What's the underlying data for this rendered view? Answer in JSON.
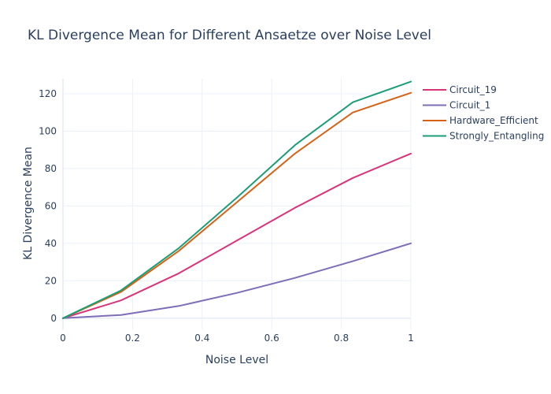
{
  "chart_data": {
    "type": "line",
    "title": "KL Divergence Mean for Different Ansaetze over Noise Level",
    "xlabel": "Noise Level",
    "ylabel": "KL Divergence Mean",
    "xlim": [
      0,
      1
    ],
    "ylim": [
      -6,
      128
    ],
    "xticks": [
      0,
      0.2,
      0.4,
      0.6,
      0.8,
      1
    ],
    "xtick_labels": [
      "0",
      "0.2",
      "0.4",
      "0.6",
      "0.8",
      "1"
    ],
    "yticks": [
      0,
      20,
      40,
      60,
      80,
      100,
      120
    ],
    "ytick_labels": [
      "0",
      "20",
      "40",
      "60",
      "80",
      "100",
      "120"
    ],
    "grid": true,
    "legend_position": "top-right",
    "x": [
      0,
      0.1667,
      0.3333,
      0.5,
      0.6667,
      0.8333,
      1
    ],
    "series": [
      {
        "name": "Circuit_19",
        "color": "#d9347b",
        "values": [
          0,
          9.5,
          24,
          41.5,
          59,
          75,
          88
        ]
      },
      {
        "name": "Circuit_1",
        "color": "#7e6db7",
        "values": [
          0,
          1.7,
          6.5,
          13.5,
          21.5,
          30.5,
          40
        ]
      },
      {
        "name": "Hardware_Efficient",
        "color": "#d76216",
        "values": [
          0,
          14,
          36,
          62,
          88,
          110,
          120.5
        ]
      },
      {
        "name": "Strongly_Entangling",
        "color": "#1b9e77",
        "values": [
          0,
          14.8,
          37.5,
          64.5,
          92.5,
          115.5,
          126.5
        ]
      }
    ]
  }
}
